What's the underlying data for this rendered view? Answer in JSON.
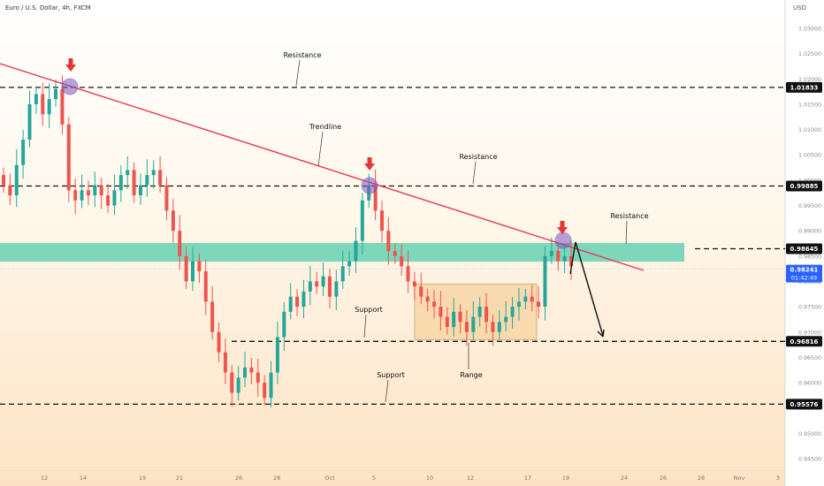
{
  "header": {
    "symbol": "Euro / U.S. Dollar, 4h, FXCM",
    "currency": "USD"
  },
  "chart_data": {
    "type": "candlestick",
    "y_ticks": [
      1.03,
      1.025,
      1.02,
      1.015,
      1.01,
      1.005,
      1.0,
      0.995,
      0.99,
      0.985,
      0.98,
      0.975,
      0.97,
      0.965,
      0.96,
      0.955,
      0.95,
      0.945
    ],
    "y_tick_labels": [
      "1.03000",
      "1.02500",
      "1.02000",
      "1.01500",
      "1.01000",
      "1.00500",
      "1.00000",
      "0.99500",
      "0.99000",
      "0.98500",
      "0.98000",
      "0.97500",
      "0.97000",
      "0.96500",
      "0.96000",
      "0.95500",
      "0.95000",
      "0.94500"
    ],
    "x_ticks": [
      "12",
      "14",
      "19",
      "21",
      "26",
      "28",
      "Oct",
      "5",
      "10",
      "12",
      "17",
      "19",
      "24",
      "26",
      "28",
      "Nov",
      "3"
    ],
    "ylim": [
      0.9415,
      1.0315
    ],
    "price_levels": [
      {
        "value": 1.01833,
        "label": "1.01833"
      },
      {
        "value": 0.99885,
        "label": "0.99885"
      },
      {
        "value": 0.98645,
        "label": "0.98645"
      },
      {
        "value": 0.96816,
        "label": "0.96816"
      },
      {
        "value": 0.95576,
        "label": "0.95576"
      }
    ],
    "current_price": {
      "value": 0.98241,
      "label": "0.98241",
      "countdown": "01:42:49"
    },
    "zone": {
      "from": 0.9839,
      "to": 0.9876
    },
    "range_box": {
      "from": 0.9685,
      "to": 0.9795
    },
    "annotations": [
      "Resistance",
      "Trendline",
      "Resistance",
      "Resistance",
      "Support",
      "Support",
      "Range"
    ],
    "close_path": [
      0.999,
      0.997,
      1.003,
      1.008,
      1.015,
      1.017,
      1.013,
      1.016,
      1.018,
      1.011,
      0.998,
      0.996,
      0.998,
      0.997,
      0.999,
      0.997,
      0.995,
      0.998,
      1.001,
      1.002,
      0.997,
      0.999,
      1.001,
      1.002,
      0.999,
      0.994,
      0.99,
      0.985,
      0.98,
      0.984,
      0.982,
      0.976,
      0.97,
      0.966,
      0.962,
      0.958,
      0.961,
      0.963,
      0.962,
      0.96,
      0.957,
      0.962,
      0.969,
      0.974,
      0.977,
      0.975,
      0.978,
      0.98,
      0.979,
      0.981,
      0.977,
      0.98,
      0.983,
      0.984,
      0.988,
      0.996,
      0.999,
      0.994,
      0.99,
      0.986,
      0.985,
      0.983,
      0.98,
      0.979,
      0.977,
      0.976,
      0.975,
      0.973,
      0.971,
      0.974,
      0.972,
      0.97,
      0.973,
      0.975,
      0.972,
      0.97,
      0.972,
      0.973,
      0.975,
      0.976,
      0.977,
      0.976,
      0.975,
      0.985,
      0.986,
      0.984,
      0.985,
      0.983
    ],
    "colors": {
      "up": "#26a69a",
      "down": "#ef5350",
      "trendline": "#e53950",
      "zone": "#5ccfb0",
      "range": "#f5c98a",
      "arrow": "#e53535",
      "marker": "#7e57c2"
    }
  }
}
